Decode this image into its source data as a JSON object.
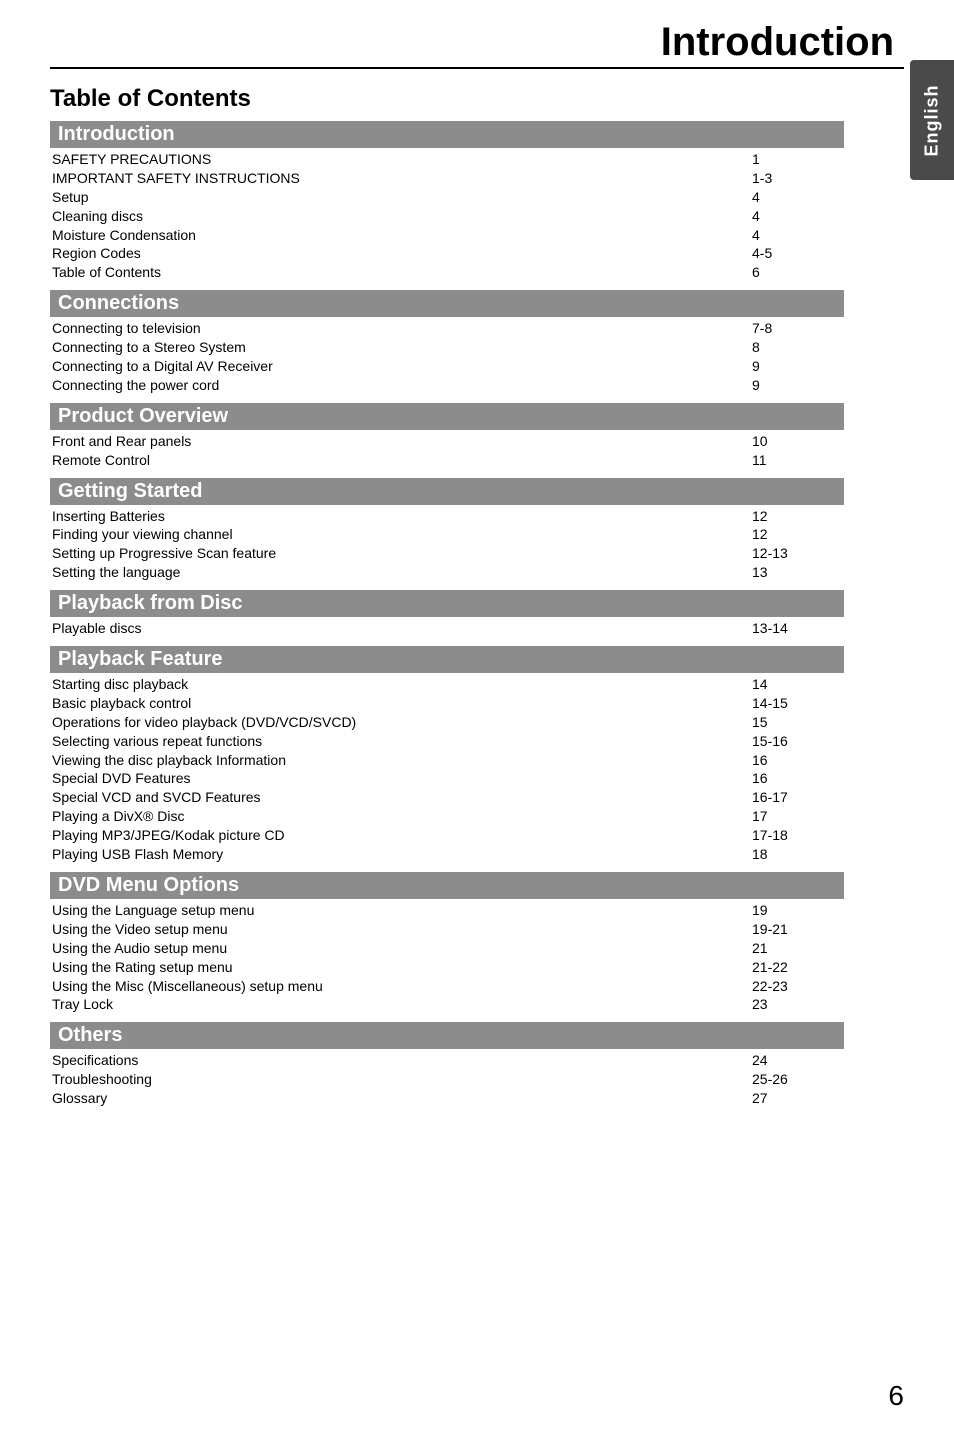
{
  "chapterTitle": "Introduction",
  "sideTab": "English",
  "tocTitle": "Table of Contents",
  "pageNumber": "6",
  "sections": [
    {
      "title": "Introduction",
      "items": [
        {
          "label": "SAFETY PRECAUTIONS",
          "page": "1"
        },
        {
          "label": "IMPORTANT SAFETY INSTRUCTIONS",
          "page": "1-3"
        },
        {
          "label": "Setup",
          "page": "4"
        },
        {
          "label": "Cleaning discs",
          "page": "4"
        },
        {
          "label": "Moisture Condensation",
          "page": "4"
        },
        {
          "label": "Region Codes",
          "page": "4-5"
        },
        {
          "label": "Table of Contents",
          "page": "6"
        }
      ]
    },
    {
      "title": "Connections",
      "items": [
        {
          "label": "Connecting to television",
          "page": "7-8"
        },
        {
          "label": "Connecting to a Stereo System",
          "page": "8"
        },
        {
          "label": "Connecting to a Digital AV Receiver",
          "page": "9"
        },
        {
          "label": "Connecting the power cord",
          "page": "9"
        }
      ]
    },
    {
      "title": "Product  Overview",
      "items": [
        {
          "label": "Front and Rear panels",
          "page": "10"
        },
        {
          "label": "Remote Control",
          "page": "11"
        }
      ]
    },
    {
      "title": "Getting Started",
      "items": [
        {
          "label": "Inserting Batteries",
          "page": "12"
        },
        {
          "label": "Finding your viewing channel",
          "page": "12"
        },
        {
          "label": "Setting up Progressive Scan feature",
          "page": "12-13"
        },
        {
          "label": "Setting the language",
          "page": "13"
        }
      ]
    },
    {
      "title": "Playback from Disc",
      "items": [
        {
          "label": "Playable discs",
          "page": "13-14"
        }
      ]
    },
    {
      "title": "Playback Feature",
      "items": [
        {
          "label": "Starting disc playback",
          "page": "14"
        },
        {
          "label": "Basic playback control",
          "page": "14-15"
        },
        {
          "label": "Operations for video playback (DVD/VCD/SVCD)",
          "page": "15"
        },
        {
          "label": "Selecting various repeat functions",
          "page": "15-16"
        },
        {
          "label": "Viewing the disc playback Information",
          "page": "16"
        },
        {
          "label": "Special DVD Features",
          "page": "16"
        },
        {
          "label": "Special VCD and SVCD Features",
          "page": "16-17"
        },
        {
          "label": "Playing a DivX® Disc",
          "page": "17"
        },
        {
          "label": "Playing MP3/JPEG/Kodak picture CD",
          "page": "17-18"
        },
        {
          "label": "Playing USB Flash Memory",
          "page": "18"
        }
      ]
    },
    {
      "title": "DVD Menu Options",
      "items": [
        {
          "label": "Using the Language setup menu",
          "page": "19"
        },
        {
          "label": "Using the Video setup menu",
          "page": "19-21"
        },
        {
          "label": "Using the Audio setup menu",
          "page": "21"
        },
        {
          "label": "Using the Rating setup menu",
          "page": "21-22"
        },
        {
          "label": "Using the Misc (Miscellaneous) setup menu",
          "page": "22-23"
        },
        {
          "label": "Tray Lock",
          "page": "23"
        }
      ]
    },
    {
      "title": "Others",
      "items": [
        {
          "label": "Specifications",
          "page": "24"
        },
        {
          "label": "Troubleshooting",
          "page": "25-26"
        },
        {
          "label": "Glossary",
          "page": "27"
        }
      ]
    }
  ]
}
